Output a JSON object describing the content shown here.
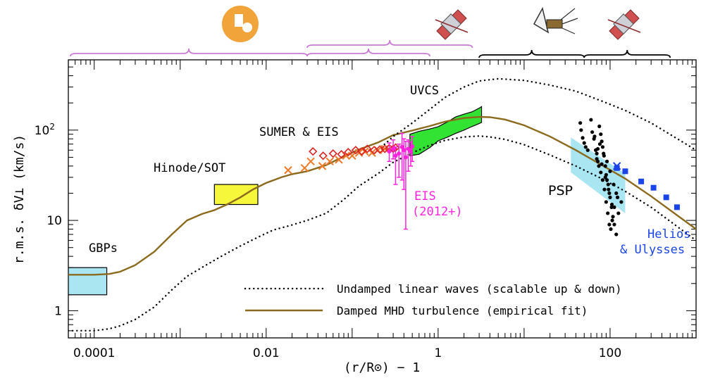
{
  "chart_data": {
    "type": "scatter",
    "xscale": "log",
    "yscale": "log",
    "xlim": [
      5e-05,
      1000
    ],
    "ylim": [
      0.5,
      600
    ],
    "xlabel": "(r/R⊙) − 1",
    "ylabel": "r.m.s.  δV⊥  (km/s)",
    "x_ticklabels": [
      {
        "value": 0.0001,
        "label": "0.0001"
      },
      {
        "value": 0.01,
        "label": "0.01"
      },
      {
        "value": 1,
        "label": "1"
      },
      {
        "value": 100,
        "label": "100"
      }
    ],
    "y_ticklabels": [
      {
        "value": 1,
        "label": "1"
      },
      {
        "value": 10,
        "label": "10"
      },
      {
        "value": 100,
        "label": "10",
        "sup": "2"
      }
    ],
    "colors": {
      "fit": "#8b6a1e",
      "gbp": "#a9e6f2",
      "hinode": "#f6f63a",
      "uvcs": "#33e333",
      "eis2012": "#ff22dd",
      "sumer_diamond": "#dd2222",
      "sumer_cross": "#f07a2a",
      "psp_band": "#a9e6f2",
      "helios": "#1a44e8",
      "bracket_purple": "#c87ad6"
    },
    "region_labels": {
      "gbp": "GBPs",
      "hinode": "Hinode/SOT",
      "sumer": "SUMER & EIS",
      "uvcs": "UVCS",
      "eis2012_line1": "EIS",
      "eis2012_line2": "(2012+)",
      "psp": "PSP",
      "helios_line1": "Helios",
      "helios_line2": "& Ulysses"
    },
    "legend": {
      "position": "bottom-right",
      "entries": [
        {
          "label": "Undamped linear waves (scalable up & down)",
          "style": "dotted"
        },
        {
          "label": "Damped MHD turbulence (empirical fit)",
          "style": "solid"
        }
      ]
    },
    "series": [
      {
        "style": "solid",
        "x": [
          5e-05,
          0.0001,
          0.00015,
          0.0002,
          0.0003,
          0.0005,
          0.0008,
          0.0012,
          0.0018,
          0.0025,
          0.0035,
          0.005,
          0.007,
          0.01,
          0.015,
          0.02,
          0.03,
          0.05,
          0.08,
          0.12,
          0.2,
          0.3,
          0.5,
          0.8,
          1.2,
          2,
          3,
          4,
          6,
          10,
          20,
          40,
          80,
          150,
          300,
          1000
        ],
        "y": [
          2.5,
          2.5,
          2.55,
          2.7,
          3.2,
          4.5,
          7.0,
          10.0,
          11.8,
          13.0,
          15.0,
          18.0,
          22.0,
          26.0,
          30.0,
          32.5,
          35.0,
          41.0,
          51.0,
          61.0,
          73.0,
          88.0,
          99.0,
          111.0,
          124.0,
          136.0,
          140.0,
          139.0,
          131.0,
          113.0,
          85.0,
          60.0,
          41.0,
          29.0,
          18.5,
          8.0
        ]
      },
      {
        "style": "dotted",
        "x": [
          5e-05,
          0.0001,
          0.00015,
          0.0002,
          0.0003,
          0.0005,
          0.0008,
          0.0012,
          0.002,
          0.003,
          0.005,
          0.008,
          0.012,
          0.02,
          0.03,
          0.05,
          0.08,
          0.12,
          0.2,
          0.3,
          0.5,
          0.8,
          1.2,
          2,
          3,
          4,
          6,
          10,
          20,
          40,
          80,
          150,
          300,
          1000
        ],
        "y": [
          0.6,
          0.6,
          0.63,
          0.68,
          0.8,
          1.1,
          1.7,
          2.4,
          3.2,
          4.0,
          5.2,
          6.5,
          7.8,
          8.9,
          10.0,
          12.0,
          17.0,
          24.0,
          33.0,
          44.0,
          56.0,
          68.0,
          77.0,
          84.0,
          86.0,
          84.0,
          79.0,
          69.0,
          53.0,
          40.0,
          29.0,
          21.0,
          14.0,
          6.0
        ]
      },
      {
        "style": "dotted",
        "x": [
          0.2,
          0.3,
          0.5,
          0.8,
          1.2,
          2,
          3,
          5,
          10,
          20,
          40,
          80,
          150,
          300,
          1000
        ],
        "y": [
          60.0,
          85.0,
          120.0,
          170.0,
          230.0,
          300.0,
          350.0,
          370.0,
          355.0,
          315.0,
          270.0,
          210.0,
          165.0,
          120.0,
          60.0
        ]
      }
    ],
    "regions": {
      "gbp_box": {
        "x": [
          5e-05,
          0.00014
        ],
        "y": [
          1.5,
          3.0
        ]
      },
      "hinode_box": {
        "x": [
          0.0025,
          0.008
        ],
        "y": [
          15.0,
          25.0
        ]
      },
      "uvcs_band": {
        "upper": [
          [
            0.47,
            90
          ],
          [
            0.6,
            97
          ],
          [
            0.8,
            103
          ],
          [
            1.0,
            109
          ],
          [
            1.3,
            124
          ],
          [
            1.6,
            140
          ],
          [
            2.0,
            150
          ],
          [
            2.5,
            160
          ],
          [
            3.0,
            175
          ],
          [
            3.2,
            182
          ]
        ],
        "lower": [
          [
            0.47,
            52
          ],
          [
            0.6,
            54
          ],
          [
            0.8,
            64
          ],
          [
            1.0,
            76
          ],
          [
            1.3,
            84
          ],
          [
            1.6,
            92
          ],
          [
            2.0,
            100
          ],
          [
            2.5,
            110
          ],
          [
            3.0,
            118
          ],
          [
            3.2,
            122
          ]
        ]
      },
      "psp_band": {
        "upper": [
          [
            35,
            83
          ],
          [
            150,
            33
          ]
        ],
        "lower": [
          [
            35,
            34
          ],
          [
            150,
            12
          ]
        ]
      }
    },
    "points": {
      "sumer_diamonds": {
        "x": [
          0.035,
          0.046,
          0.06,
          0.075,
          0.09,
          0.11,
          0.13,
          0.15,
          0.18,
          0.21,
          0.24,
          0.27,
          0.3,
          0.32
        ],
        "y": [
          58.0,
          52.0,
          55.0,
          54.0,
          57.0,
          60.0,
          58.0,
          62.0,
          60.0,
          61.0,
          62.0,
          63.0,
          62.0,
          64.0
        ]
      },
      "sumer_crosses": {
        "x": [
          0.018,
          0.028,
          0.033,
          0.045,
          0.055,
          0.07,
          0.085,
          0.1,
          0.12,
          0.14,
          0.17,
          0.2,
          0.24
        ],
        "y": [
          36.0,
          38.0,
          45.0,
          40.0,
          45.0,
          47.0,
          52.0,
          52.0,
          56.0,
          58.0,
          56.0,
          60.0,
          62.0
        ]
      },
      "eis2012": {
        "x": [
          0.27,
          0.3,
          0.32,
          0.35,
          0.38,
          0.4,
          0.42,
          0.45,
          0.48,
          0.5
        ],
        "y": [
          58,
          62,
          52,
          55,
          65,
          60,
          50,
          62,
          58,
          66
        ],
        "yerr_lo": [
          45,
          48,
          25,
          30,
          28,
          22,
          8,
          35,
          40,
          45
        ],
        "yerr_hi": [
          72,
          78,
          65,
          70,
          92,
          80,
          75,
          78,
          74,
          85
        ]
      },
      "psp": {
        "x": [
          45,
          46,
          48,
          50,
          52,
          55,
          60,
          62,
          65,
          68,
          70,
          72,
          75,
          78,
          80,
          82,
          85,
          88,
          90,
          92,
          95,
          98,
          100,
          104,
          108,
          112,
          118,
          125,
          135,
          70,
          74,
          78,
          82,
          86,
          90,
          94,
          98,
          102,
          106,
          112,
          118,
          76,
          84,
          92,
          100,
          110,
          122,
          66,
          72,
          80,
          88,
          96,
          105
        ],
        "y": [
          120,
          100,
          82,
          72,
          65,
          60,
          130,
          95,
          80,
          60,
          55,
          45,
          110,
          90,
          75,
          65,
          52,
          40,
          32,
          28,
          25,
          20,
          18,
          14,
          11,
          9,
          7,
          12,
          16,
          48,
          40,
          34,
          28,
          22,
          16,
          12,
          9,
          8,
          10,
          14,
          20,
          70,
          55,
          45,
          35,
          25,
          18,
          85,
          62,
          42,
          30,
          22,
          15
        ]
      },
      "helios": {
        "x": [
          120,
          150,
          230,
          320,
          450,
          600
        ],
        "y": [
          38.0,
          35.0,
          27.0,
          23.0,
          18.0,
          14.0
        ]
      },
      "helios_cross": {
        "x": [
          120
        ],
        "y": [
          40.0
        ]
      }
    },
    "brackets": [
      {
        "x": [
          5e-05,
          0.03
        ],
        "color": "purple"
      },
      {
        "x": [
          0.03,
          0.8
        ],
        "color": "purple"
      },
      {
        "x": [
          0.03,
          2.5
        ],
        "color": "purple"
      },
      {
        "x": [
          3.0,
          50
        ],
        "color": "black"
      },
      {
        "x": [
          50,
          500
        ],
        "color": "black"
      }
    ],
    "icons": [
      {
        "name": "yohkoh-sun-icon",
        "x": 0.002
      },
      {
        "name": "soho-spacecraft-icon",
        "x": 0.6
      },
      {
        "name": "parker-probe-icon",
        "x": 8
      },
      {
        "name": "helios-spacecraft-icon",
        "x": 150
      }
    ]
  }
}
